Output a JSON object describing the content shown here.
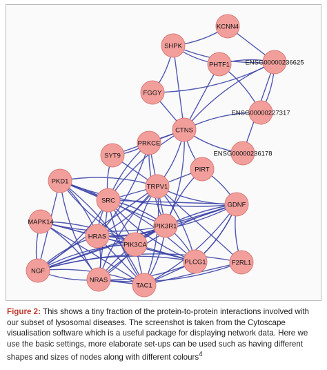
{
  "nodes": [
    {
      "label": "KCNN4"
    },
    {
      "label": "SHPK"
    },
    {
      "label": "PHTF1"
    },
    {
      "label": "ENSG00000236625"
    },
    {
      "label": "FGGY"
    },
    {
      "label": "ENSG00000227317"
    },
    {
      "label": "CTNS"
    },
    {
      "label": "PRKCE"
    },
    {
      "label": "SYT9"
    },
    {
      "label": "ENSG00000236178"
    },
    {
      "label": "PIRT"
    },
    {
      "label": "PKD1"
    },
    {
      "label": "TRPV1"
    },
    {
      "label": "SRC"
    },
    {
      "label": "GDNF"
    },
    {
      "label": "MAPK14"
    },
    {
      "label": "HRAS"
    },
    {
      "label": "PIK3R1"
    },
    {
      "label": "PIK3CA"
    },
    {
      "label": "PLCG1"
    },
    {
      "label": "F2RL1"
    },
    {
      "label": "NGF"
    },
    {
      "label": "NRAS"
    },
    {
      "label": "TAC1"
    }
  ],
  "caption": {
    "label": "Figure 2:",
    "text": "This shows a tiny fraction of the protein-to-protein interactions involved with our subset of lysosomal diseases. The screenshot is taken from the Cytoscape visualisation software which is a useful package for displaying network data. Here we use the basic settings, more elaborate set-ups can be used such as having different shapes and sizes of nodes along with different colours",
    "reference": "4"
  }
}
